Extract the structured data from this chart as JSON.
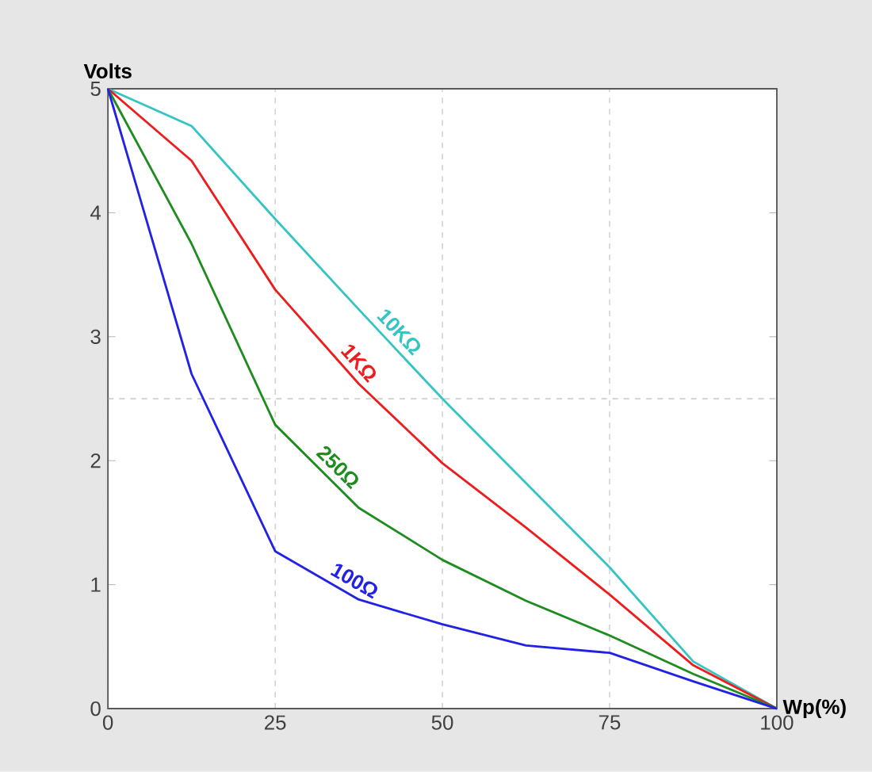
{
  "chart_data": {
    "type": "line",
    "xlabel": "Wp(%)",
    "ylabel": "Volts",
    "x": [
      0,
      12.5,
      25,
      37.5,
      50,
      62.5,
      75,
      87.5,
      100
    ],
    "series": [
      {
        "name": "10KΩ",
        "color": "#33c4c4",
        "values": [
          5,
          4.7,
          3.95,
          3.22,
          2.5,
          1.82,
          1.14,
          0.38,
          0
        ]
      },
      {
        "name": "1KΩ",
        "color": "#ee1c1c",
        "values": [
          5,
          4.42,
          3.38,
          2.62,
          1.98,
          1.46,
          0.92,
          0.35,
          0
        ]
      },
      {
        "name": "250Ω",
        "color": "#1e8c1e",
        "values": [
          5,
          3.75,
          2.29,
          1.62,
          1.2,
          0.87,
          0.59,
          0.28,
          0
        ]
      },
      {
        "name": "100Ω",
        "color": "#2222e6",
        "values": [
          5,
          2.7,
          1.27,
          0.88,
          0.68,
          0.51,
          0.45,
          0.22,
          0
        ]
      }
    ],
    "xlim": [
      0,
      100
    ],
    "ylim": [
      0,
      5
    ],
    "xticks": [
      0,
      25,
      50,
      75,
      100
    ],
    "yticks": [
      0,
      1,
      2,
      3,
      4,
      5
    ],
    "grid": "x",
    "ref_lines": [
      {
        "axis": "y",
        "value": 2.5,
        "line_style": "dashed"
      }
    ],
    "marker": "none",
    "line_style": "solid"
  }
}
